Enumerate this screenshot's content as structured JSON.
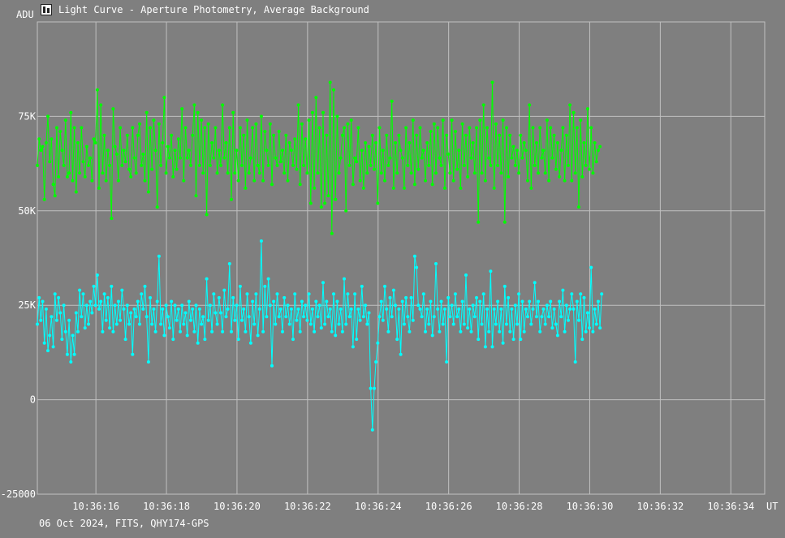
{
  "window": {
    "title": "Light Curve - Aperture Photometry, Average Background",
    "icon": "chart-icon"
  },
  "footer": {
    "info": "06 Oct 2024, FITS, QHY174-GPS"
  },
  "colors": {
    "background": "#7f7f7f",
    "grid": "#c0c0c0",
    "text": "#ffffff",
    "series_green": "#00ff00",
    "series_cyan": "#00ffff"
  },
  "chart_data": {
    "type": "line",
    "title": "Light Curve - Aperture Photometry, Average Background",
    "ylabel": "ADU",
    "xlabel": "UT",
    "ylim": [
      -25000,
      100000
    ],
    "xlim": [
      "10:36:14.34",
      "10:36:34.96"
    ],
    "yticks": [
      {
        "value": 75000,
        "label": "75K"
      },
      {
        "value": 50000,
        "label": "50K"
      },
      {
        "value": 25000,
        "label": "25K"
      },
      {
        "value": 0,
        "label": "0"
      },
      {
        "value": -25000,
        "label": "-25000"
      }
    ],
    "xticks": [
      "10:36:16",
      "10:36:18",
      "10:36:20",
      "10:36:22",
      "10:36:24",
      "10:36:26",
      "10:36:28",
      "10:36:30",
      "10:36:32",
      "10:36:34"
    ],
    "grid": true,
    "series": [
      {
        "color": "#00ff00",
        "sample_interval_s": 0.05,
        "values": [
          62000,
          69000,
          66000,
          67000,
          53000,
          68000,
          75000,
          63000,
          69000,
          57000,
          54000,
          72000,
          59000,
          71000,
          66000,
          62000,
          74000,
          59000,
          60000,
          76000,
          58000,
          72000,
          55000,
          68000,
          60000,
          72000,
          63000,
          59000,
          67000,
          62000,
          64000,
          58000,
          69000,
          68000,
          82000,
          56000,
          78000,
          60000,
          70000,
          58000,
          66000,
          62000,
          48000,
          77000,
          67000,
          65000,
          58000,
          72000,
          62000,
          66000,
          63000,
          70000,
          61000,
          59000,
          72000,
          64000,
          60000,
          70000,
          73000,
          62000,
          65000,
          58000,
          76000,
          55000,
          72000,
          61000,
          74000,
          66000,
          51000,
          73000,
          62000,
          68000,
          80000,
          60000,
          67000,
          64000,
          70000,
          59000,
          66000,
          61000,
          69000,
          64000,
          77000,
          58000,
          72000,
          64000,
          66000,
          62000,
          70000,
          78000,
          54000,
          76000,
          62000,
          74000,
          60000,
          72000,
          49000,
          73000,
          62000,
          68000,
          64000,
          72000,
          60000,
          66000,
          62000,
          78000,
          64000,
          68000,
          60000,
          72000,
          53000,
          76000,
          60000,
          66000,
          58000,
          72000,
          62000,
          70000,
          56000,
          74000,
          60000,
          64000,
          72000,
          58000,
          73000,
          62000,
          60000,
          75000,
          58000,
          71000,
          66000,
          62000,
          73000,
          57000,
          70000,
          64000,
          62000,
          71000,
          63000,
          66000,
          60000,
          70000,
          58000,
          68000,
          66000,
          62000,
          69000,
          61000,
          78000,
          57000,
          73000,
          62000,
          69000,
          60000,
          74000,
          52000,
          76000,
          56000,
          80000,
          60000,
          72000,
          51000,
          76000,
          52000,
          70000,
          54000,
          84000,
          44000,
          82000,
          53000,
          75000,
          60000,
          64000,
          70000,
          72000,
          50000,
          73000,
          62000,
          74000,
          57000,
          64000,
          63000,
          72000,
          58000,
          66000,
          56000,
          68000,
          60000,
          67000,
          62000,
          70000,
          61000,
          68000,
          52000,
          72000,
          60000,
          66000,
          58000,
          70000,
          62000,
          64000,
          79000,
          56000,
          68000,
          60000,
          70000,
          66000,
          64000,
          56000,
          72000,
          62000,
          68000,
          60000,
          74000,
          57000,
          70000,
          61000,
          72000,
          64000,
          66000,
          58000,
          68000,
          62000,
          71000,
          57000,
          73000,
          60000,
          72000,
          64000,
          62000,
          74000,
          56000,
          70000,
          65000,
          60000,
          74000,
          58000,
          71000,
          61000,
          66000,
          56000,
          73000,
          62000,
          70000,
          59000,
          72000,
          64000,
          68000,
          60000,
          72000,
          47000,
          74000,
          60000,
          78000,
          58000,
          72000,
          64000,
          62000,
          84000,
          56000,
          73000,
          62000,
          70000,
          60000,
          74000,
          47000,
          72000,
          59000,
          70000,
          64000,
          67000,
          62000,
          66000,
          60000,
          70000,
          64000,
          68000,
          66000,
          58000,
          78000,
          56000,
          72000,
          62000,
          68000,
          60000,
          72000,
          64000,
          66000,
          60000,
          74000,
          58000,
          72000,
          64000,
          70000,
          61000,
          68000,
          59000,
          66000,
          72000,
          58000,
          70000,
          62000,
          78000,
          58000,
          76000,
          60000,
          72000,
          51000,
          74000,
          59000,
          68000,
          62000,
          77000,
          61000,
          72000,
          60000,
          68000,
          63000,
          66000,
          67000
        ]
      },
      {
        "color": "#00ffff",
        "sample_interval_s": 0.05,
        "values": [
          20000,
          27000,
          21000,
          26000,
          15000,
          24000,
          13000,
          17000,
          22000,
          14000,
          28000,
          21000,
          27000,
          23000,
          16000,
          25000,
          18000,
          12000,
          21000,
          10000,
          17000,
          12000,
          23000,
          18000,
          29000,
          22000,
          28000,
          19000,
          25000,
          20000,
          26000,
          23000,
          30000,
          25000,
          33000,
          24000,
          26000,
          18000,
          28000,
          21000,
          27000,
          19000,
          30000,
          18000,
          25000,
          20000,
          26000,
          21000,
          29000,
          24000,
          16000,
          25000,
          20000,
          23000,
          12000,
          24000,
          22000,
          26000,
          20000,
          28000,
          24000,
          30000,
          22000,
          10000,
          27000,
          20000,
          24000,
          18000,
          26000,
          38000,
          20000,
          24000,
          17000,
          25000,
          22000,
          19000,
          26000,
          16000,
          25000,
          21000,
          24000,
          18000,
          25000,
          20000,
          23000,
          17000,
          26000,
          21000,
          24000,
          18000,
          25000,
          15000,
          24000,
          20000,
          22000,
          16000,
          32000,
          21000,
          25000,
          18000,
          28000,
          23000,
          20000,
          27000,
          23000,
          18000,
          29000,
          22000,
          24000,
          36000,
          18000,
          27000,
          21000,
          25000,
          16000,
          30000,
          21000,
          24000,
          18000,
          28000,
          22000,
          15000,
          26000,
          20000,
          28000,
          17000,
          24000,
          42000,
          18000,
          30000,
          22000,
          32000,
          25000,
          9000,
          26000,
          20000,
          28000,
          22000,
          24000,
          18000,
          27000,
          22000,
          25000,
          20000,
          24000,
          16000,
          28000,
          21000,
          24000,
          18000,
          26000,
          22000,
          25000,
          21000,
          28000,
          20000,
          24000,
          18000,
          26000,
          22000,
          25000,
          19000,
          31000,
          20000,
          26000,
          22000,
          24000,
          18000,
          28000,
          17000,
          26000,
          20000,
          24000,
          18000,
          32000,
          20000,
          28000,
          22000,
          24000,
          14000,
          28000,
          16000,
          24000,
          21000,
          30000,
          22000,
          25000,
          20000,
          23000,
          3000,
          -8000,
          3000,
          10000,
          15000,
          22000,
          26000,
          21000,
          30000,
          24000,
          18000,
          27000,
          22000,
          29000,
          25000,
          16000,
          24000,
          12000,
          26000,
          20000,
          27000,
          22000,
          18000,
          27000,
          21000,
          38000,
          35000,
          25000,
          24000,
          22000,
          28000,
          18000,
          24000,
          20000,
          26000,
          17000,
          22000,
          36000,
          24000,
          18000,
          26000,
          20000,
          24000,
          10000,
          27000,
          22000,
          25000,
          20000,
          28000,
          22000,
          24000,
          18000,
          26000,
          20000,
          33000,
          19000,
          24000,
          18000,
          25000,
          22000,
          27000,
          16000,
          26000,
          20000,
          28000,
          14000,
          24000,
          18000,
          34000,
          14000,
          24000,
          20000,
          26000,
          18000,
          24000,
          15000,
          30000,
          20000,
          27000,
          18000,
          24000,
          16000,
          25000,
          20000,
          28000,
          16000,
          26000,
          18000,
          24000,
          22000,
          26000,
          20000,
          24000,
          31000,
          22000,
          26000,
          18000,
          22000,
          24000,
          20000,
          25000,
          22000,
          26000,
          19000,
          24000,
          20000,
          17000,
          26000,
          22000,
          29000,
          18000,
          25000,
          21000,
          24000,
          28000,
          24000,
          10000,
          26000,
          21000,
          28000,
          16000,
          27000,
          18000,
          23000,
          19000,
          35000,
          18000,
          24000,
          20000,
          26000,
          19000,
          28000
        ]
      }
    ]
  }
}
